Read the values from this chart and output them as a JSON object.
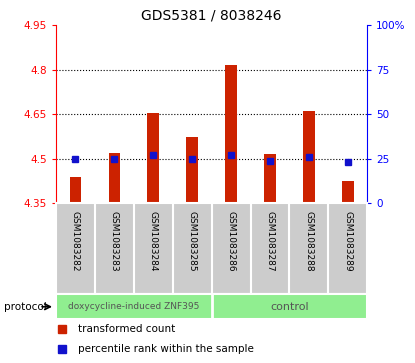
{
  "title": "GDS5381 / 8038246",
  "samples": [
    "GSM1083282",
    "GSM1083283",
    "GSM1083284",
    "GSM1083285",
    "GSM1083286",
    "GSM1083287",
    "GSM1083288",
    "GSM1083289"
  ],
  "transformed_count": [
    4.44,
    4.52,
    4.655,
    4.575,
    4.815,
    4.515,
    4.66,
    4.425
  ],
  "percentile_rank": [
    25,
    25,
    27,
    25,
    27,
    24,
    26,
    23
  ],
  "bar_bottom": 4.35,
  "ylim_left": [
    4.35,
    4.95
  ],
  "ylim_right": [
    0,
    100
  ],
  "yticks_left": [
    4.35,
    4.5,
    4.65,
    4.8,
    4.95
  ],
  "ytick_labels_left": [
    "4.35",
    "4.5",
    "4.65",
    "4.8",
    "4.95"
  ],
  "yticks_right": [
    0,
    25,
    50,
    75,
    100
  ],
  "ytick_labels_right": [
    "0",
    "25",
    "50",
    "75",
    "100%"
  ],
  "hlines": [
    4.5,
    4.65,
    4.8
  ],
  "bar_color": "#cc2200",
  "dot_color": "#1111cc",
  "group1_label": "doxycycline-induced ZNF395",
  "group2_label": "control",
  "group1_count": 4,
  "group2_count": 4,
  "protocol_label": "protocol",
  "legend_bar_label": "transformed count",
  "legend_dot_label": "percentile rank within the sample",
  "background_color": "#ffffff",
  "plot_bg_color": "#ffffff",
  "label_area_bg": "#cccccc",
  "group_bg": "#90ee90",
  "bar_width": 0.3
}
